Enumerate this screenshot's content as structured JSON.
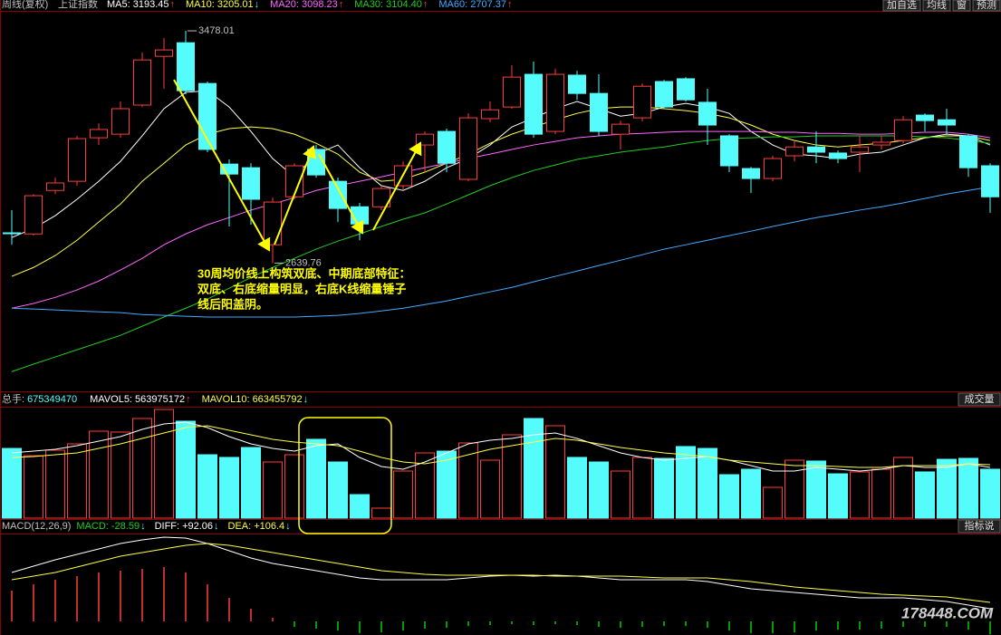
{
  "header": {
    "period": "周线(复权)",
    "symbol": "上证指数"
  },
  "buttons": [
    "加自选",
    "均线",
    "窗",
    "预测"
  ],
  "chart_data": [
    {
      "type": "candlestick",
      "open": [
        2749,
        2745,
        2902,
        2935,
        3092,
        3105,
        3210,
        3386,
        3435,
        3288,
        2997,
        2984,
        2706,
        2879,
        3050,
        2935,
        2843,
        2843,
        2919,
        3066,
        3115,
        2942,
        3161,
        3203,
        3321,
        3115,
        3318,
        3252,
        3105,
        3164,
        3295,
        3305,
        3220,
        3099,
        2981,
        2945,
        3027,
        3059,
        3037,
        3040,
        3066,
        3082,
        3174,
        3157,
        3099,
        2991
      ],
      "high": [
        2831,
        2889,
        2948,
        3099,
        3144,
        3223,
        3400,
        3452,
        3478.01,
        3295,
        3014,
        3000,
        2876,
        3000,
        3066,
        2948,
        2857,
        2919,
        3007,
        3115,
        3125,
        3180,
        3223,
        3354,
        3367,
        3341,
        3334,
        3321,
        3154,
        3288,
        3301,
        3311,
        3269,
        3105,
        2987,
        3027,
        3082,
        3115,
        3046,
        3099,
        3099,
        3170,
        3180,
        3197,
        3105,
        3000
      ],
      "low": [
        2706,
        2739,
        2889,
        2919,
        3066,
        3092,
        3203,
        3269,
        3249,
        3040,
        2772,
        2778,
        2639.76,
        2870,
        2948,
        2788,
        2722,
        2831,
        2902,
        2968,
        2968,
        2935,
        3148,
        3197,
        3092,
        3105,
        3229,
        3099,
        3050,
        3151,
        3197,
        3223,
        3066,
        2968,
        2893,
        2935,
        3007,
        3000,
        3000,
        2968,
        3050,
        3072,
        3115,
        3105,
        2951,
        2821
      ],
      "close": [
        2749,
        2883,
        2929,
        3089,
        3122,
        3197,
        3373,
        3409,
        3262,
        3050,
        2961,
        2870,
        2860,
        2991,
        2958,
        2837,
        2781,
        2909,
        2991,
        3105,
        3000,
        3164,
        3193,
        3311,
        3105,
        3321,
        3252,
        3115,
        3141,
        3278,
        3203,
        3229,
        3138,
        2991,
        2945,
        3017,
        3059,
        3040,
        3017,
        3059,
        3076,
        3157,
        3154,
        3138,
        2984,
        2879
      ],
      "up_color": "#ff3c3c",
      "down_color": "#54fcfc",
      "ylim": [
        2177,
        3550
      ],
      "series": [
        {
          "label": "MA5: 3193.45",
          "trend": "↑",
          "trend_color": "#ff3c3c",
          "color": "#ffffff",
          "values": [
            2732,
            2765,
            2811,
            2870,
            2935,
            3007,
            3099,
            3197,
            3256,
            3262,
            3203,
            3115,
            3017,
            2951,
            3033,
            3066,
            2984,
            2919,
            2902,
            2935,
            2984,
            3017,
            3066,
            3131,
            3164,
            3197,
            3223,
            3197,
            3170,
            3180,
            3203,
            3216,
            3203,
            3180,
            3115,
            3066,
            3033,
            3027,
            3017,
            3033,
            3040,
            3066,
            3092,
            3105,
            3099,
            3066
          ]
        },
        {
          "label": "MA10: 3205.01",
          "trend": "↓",
          "trend_color": "#54fcfc",
          "color": "#ffff44",
          "values": [
            2592,
            2624,
            2667,
            2722,
            2788,
            2853,
            2935,
            3000,
            3066,
            3105,
            3125,
            3131,
            3125,
            3105,
            3072,
            3033,
            2968,
            2935,
            2942,
            2968,
            3000,
            3033,
            3072,
            3105,
            3131,
            3157,
            3180,
            3197,
            3203,
            3203,
            3197,
            3190,
            3180,
            3164,
            3138,
            3105,
            3082,
            3066,
            3059,
            3066,
            3072,
            3082,
            3092,
            3099,
            3099,
            3082
          ]
        },
        {
          "label": "MA20: 3098.23",
          "trend": "↑",
          "trend_color": "#ff3c3c",
          "color": "#ff66ff",
          "values": [
            2477,
            2494,
            2516,
            2543,
            2575,
            2615,
            2657,
            2706,
            2745,
            2778,
            2804,
            2831,
            2853,
            2876,
            2902,
            2919,
            2935,
            2951,
            2968,
            2984,
            3000,
            3017,
            3033,
            3050,
            3066,
            3079,
            3092,
            3099,
            3105,
            3108,
            3112,
            3115,
            3115,
            3115,
            3115,
            3112,
            3112,
            3108,
            3108,
            3105,
            3105,
            3108,
            3112,
            3112,
            3105,
            3092
          ]
        },
        {
          "label": "MA30: 3104.40",
          "trend": "↑",
          "trend_color": "#ff3c3c",
          "color": "#22cc22",
          "values": [
            2248,
            2275,
            2301,
            2327,
            2353,
            2379,
            2412,
            2445,
            2477,
            2510,
            2549,
            2588,
            2624,
            2657,
            2690,
            2719,
            2745,
            2772,
            2798,
            2821,
            2853,
            2886,
            2919,
            2948,
            2974,
            2994,
            3014,
            3027,
            3040,
            3050,
            3059,
            3072,
            3082,
            3089,
            3092,
            3095,
            3095,
            3099,
            3099,
            3099,
            3099,
            3099,
            3095,
            3092,
            3082,
            3072
          ]
        },
        {
          "label": "MA60: 2707.37",
          "trend": "↑",
          "trend_color": "#ff3c3c",
          "color": "#44aaff",
          "values": [
            2477,
            2474,
            2471,
            2467,
            2464,
            2461,
            2454,
            2451,
            2448,
            2445,
            2445,
            2445,
            2445,
            2445,
            2448,
            2451,
            2458,
            2467,
            2477,
            2490,
            2503,
            2520,
            2536,
            2552,
            2572,
            2592,
            2611,
            2631,
            2650,
            2670,
            2690,
            2706,
            2722,
            2739,
            2755,
            2772,
            2788,
            2804,
            2817,
            2831,
            2843,
            2857,
            2873,
            2889,
            2902,
            2915
          ]
        }
      ],
      "annotation": [
        "30周均价线上构筑双底、中期底部特征：",
        "双底、右底缩量明显，右底K线缩量锤子",
        "线后阳盖阴。"
      ]
    },
    {
      "type": "volume",
      "title": "总手:",
      "panel_label": "成交量",
      "values": [
        962000000,
        862000000,
        938000000,
        1025000000,
        1200000000,
        1188000000,
        1375000000,
        1500000000,
        1338000000,
        875000000,
        838000000,
        975000000,
        775000000,
        875000000,
        1088000000,
        775000000,
        325000000,
        138000000,
        650000000,
        900000000,
        925000000,
        1038000000,
        800000000,
        1150000000,
        1375000000,
        1275000000,
        838000000,
        775000000,
        650000000,
        838000000,
        825000000,
        988000000,
        962000000,
        600000000,
        675000000,
        425000000,
        800000000,
        788000000,
        612000000,
        638000000,
        675000000,
        838000000,
        638000000,
        812000000,
        825000000,
        675349470
      ],
      "color": "#54fcfc",
      "ylim": [
        0,
        1500000000
      ],
      "series": [
        {
          "label": "MAVOL5:",
          "readout": 563975172,
          "trend": "↑",
          "trend_color": "#ff3c3c",
          "color": "#ffffff",
          "values": [
            900000000,
            925000000,
            950000000,
            1000000000,
            1062500000,
            1125000000,
            1225000000,
            1300000000,
            1325000000,
            1250000000,
            1125000000,
            1025000000,
            962500000,
            925000000,
            1000000000,
            1025000000,
            837500000,
            712500000,
            675000000,
            775000000,
            900000000,
            1025000000,
            1075000000,
            1100000000,
            1150000000,
            1175000000,
            1100000000,
            1000000000,
            900000000,
            837500000,
            800000000,
            825000000,
            850000000,
            800000000,
            725000000,
            650000000,
            650000000,
            700000000,
            675000000,
            650000000,
            675000000,
            725000000,
            700000000,
            700000000,
            750000000,
            700000000
          ]
        },
        {
          "label": "MAVOL10:",
          "readout": 663455792,
          "trend": "↓",
          "trend_color": "#54fcfc",
          "color": "#ffff44",
          "values": [
            837500000,
            850000000,
            875000000,
            900000000,
            962500000,
            1025000000,
            1100000000,
            1175000000,
            1250000000,
            1275000000,
            1212500000,
            1150000000,
            1087500000,
            1050000000,
            1025000000,
            1000000000,
            925000000,
            837500000,
            775000000,
            750000000,
            800000000,
            875000000,
            950000000,
            1000000000,
            1050000000,
            1100000000,
            1075000000,
            1025000000,
            975000000,
            937500000,
            900000000,
            875000000,
            850000000,
            800000000,
            775000000,
            750000000,
            725000000,
            725000000,
            712500000,
            700000000,
            700000000,
            725000000,
            725000000,
            725000000,
            750000000,
            737500000
          ]
        }
      ]
    },
    {
      "type": "macd",
      "title": "MACD(12,26,9)",
      "value_label": "MACD:",
      "panel_label": "指标说",
      "trend": "↓",
      "trend_color": "#54fcfc",
      "values": [
        68,
        82,
        92,
        100,
        108,
        112,
        116,
        120,
        108,
        82,
        52,
        28,
        8,
        -12,
        -16,
        -20,
        -26,
        -24,
        -20,
        -16,
        -14,
        -10,
        -8,
        -6,
        -8,
        -6,
        -8,
        -12,
        -14,
        -12,
        -10,
        -10,
        -14,
        -20,
        -26,
        -26,
        -24,
        -20,
        -18,
        -18,
        -16,
        -12,
        -12,
        -12,
        -18,
        -28.59
      ],
      "up_color": "#ff3c3c",
      "down_color": "#00d000",
      "ylim": [
        -30,
        192
      ],
      "series": [
        {
          "label": "DIFF:",
          "readout": "+92.06",
          "trend": "↓",
          "trend_color": "#54fcfc",
          "color": "#ffffff",
          "values": [
            108,
            122,
            136,
            148,
            160,
            172,
            180,
            186,
            184,
            172,
            156,
            140,
            128,
            120,
            112,
            104,
            96,
            92,
            92,
            92,
            92,
            96,
            100,
            102,
            100,
            102,
            100,
            96,
            92,
            92,
            92,
            92,
            88,
            80,
            72,
            68,
            64,
            60,
            56,
            52,
            52,
            52,
            48,
            44,
            36,
            28
          ]
        },
        {
          "label": "DEA:",
          "readout": "+106.4",
          "trend": "↓",
          "trend_color": "#54fcfc",
          "color": "#ffff44",
          "values": [
            92,
            100,
            108,
            120,
            132,
            144,
            152,
            160,
            168,
            172,
            168,
            160,
            152,
            144,
            136,
            128,
            120,
            112,
            108,
            104,
            102,
            102,
            102,
            102,
            102,
            100,
            100,
            100,
            100,
            98,
            96,
            96,
            96,
            92,
            88,
            82,
            76,
            72,
            68,
            64,
            60,
            58,
            56,
            54,
            48,
            42
          ]
        }
      ]
    }
  ],
  "watermark": "178448.COM"
}
